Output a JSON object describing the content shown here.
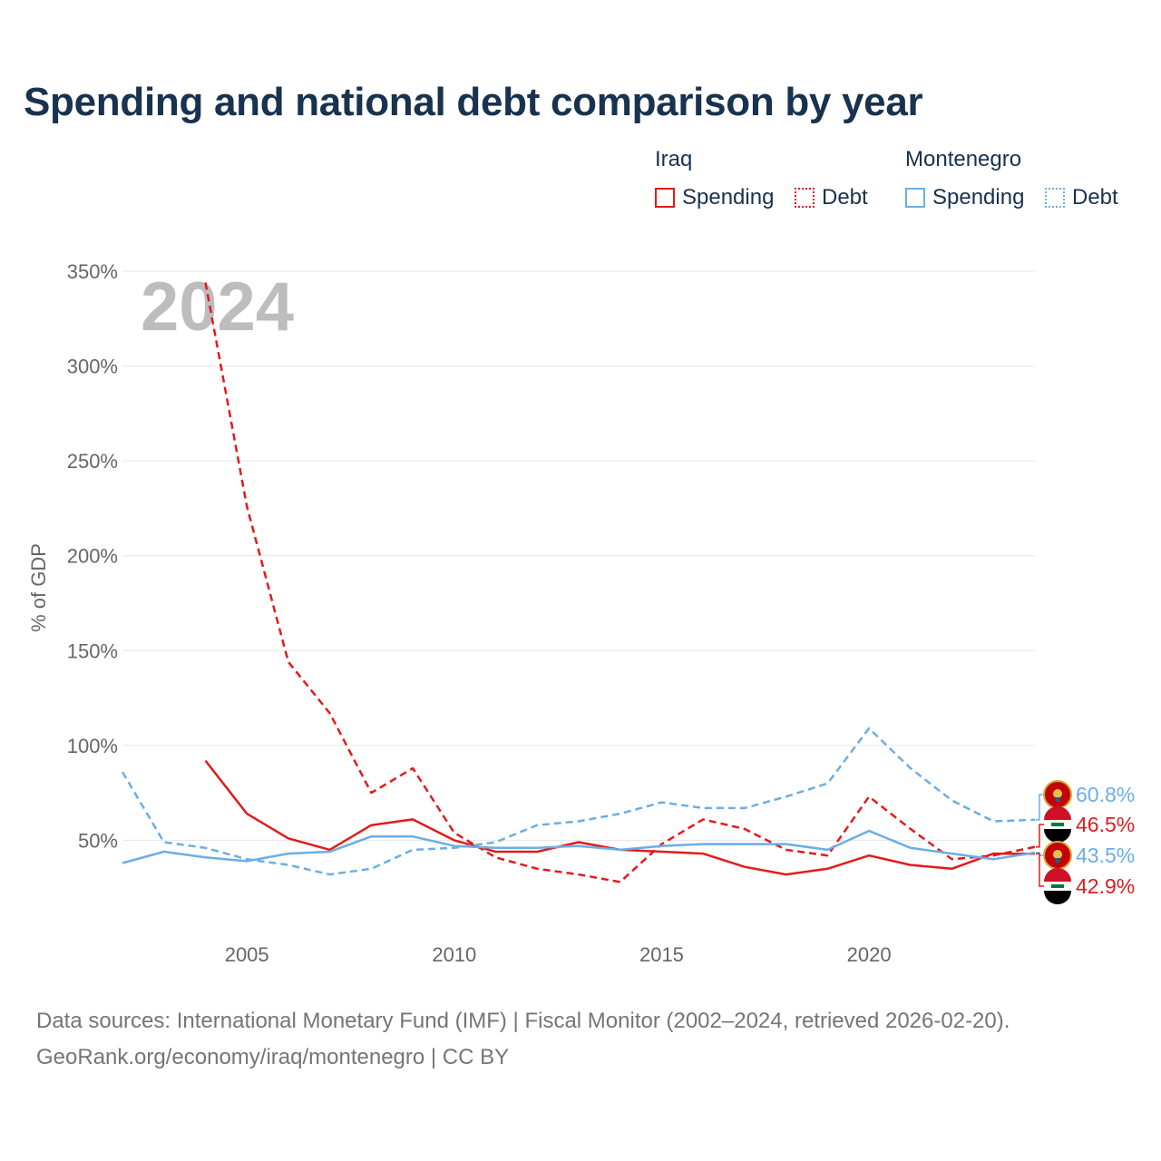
{
  "title": "Spending and national debt comparison by year",
  "legend": {
    "iraq": {
      "country": "Iraq",
      "spending": "Spending",
      "debt": "Debt",
      "color": "#e31a1c"
    },
    "montenegro": {
      "country": "Montenegro",
      "spending": "Spending",
      "debt": "Debt",
      "color": "#6aaee6"
    }
  },
  "year_label": "2024",
  "footer": {
    "line1": "Data sources: International Monetary Fund (IMF) | Fiscal Monitor (2002–2024, retrieved 2026-02-20).",
    "line2": "GeoRank.org/economy/iraq/montenegro | CC BY"
  },
  "chart_data": {
    "type": "line",
    "ylabel": "% of GDP",
    "xlim": [
      2002,
      2024
    ],
    "ylim": [
      0,
      350
    ],
    "x_ticks": [
      2005,
      2010,
      2015,
      2020
    ],
    "x_tick_labels": [
      "2005",
      "2010",
      "2015",
      "2020"
    ],
    "y_ticks": [
      50,
      100,
      150,
      200,
      250,
      300,
      350
    ],
    "y_tick_labels": [
      "50%",
      "100%",
      "150%",
      "200%",
      "250%",
      "300%",
      "350%"
    ],
    "series": [
      {
        "name": "Iraq Debt",
        "country": "Iraq",
        "kind": "debt",
        "color": "#e31a1c",
        "dash": "dashed",
        "x": [
          2004,
          2005,
          2006,
          2007,
          2008,
          2009,
          2010,
          2011,
          2012,
          2013,
          2014,
          2015,
          2016,
          2017,
          2018,
          2019,
          2020,
          2021,
          2022,
          2023,
          2024
        ],
        "values": [
          344,
          226,
          144,
          117,
          75,
          88,
          54,
          41,
          35,
          32,
          28,
          48,
          61,
          56,
          45,
          42,
          73,
          56,
          40,
          42,
          46.5
        ]
      },
      {
        "name": "Iraq Spending",
        "country": "Iraq",
        "kind": "spending",
        "color": "#e31a1c",
        "dash": "solid",
        "x": [
          2004,
          2005,
          2006,
          2007,
          2008,
          2009,
          2010,
          2011,
          2012,
          2013,
          2014,
          2015,
          2016,
          2017,
          2018,
          2019,
          2020,
          2021,
          2022,
          2023,
          2024
        ],
        "values": [
          92,
          64,
          51,
          45,
          58,
          61,
          50,
          44,
          44,
          49,
          45,
          44,
          43,
          36,
          32,
          35,
          42,
          37,
          35,
          43,
          42.9
        ]
      },
      {
        "name": "Montenegro Debt",
        "country": "Montenegro",
        "kind": "debt",
        "color": "#6aaee6",
        "dash": "dashed",
        "x": [
          2002,
          2003,
          2004,
          2005,
          2006,
          2007,
          2008,
          2009,
          2010,
          2011,
          2012,
          2013,
          2014,
          2015,
          2016,
          2017,
          2018,
          2019,
          2020,
          2021,
          2022,
          2023,
          2024
        ],
        "values": [
          86,
          49,
          46,
          40,
          37,
          32,
          35,
          45,
          46,
          49,
          58,
          60,
          64,
          70,
          67,
          67,
          73,
          80,
          109,
          88,
          71,
          60,
          60.8
        ]
      },
      {
        "name": "Montenegro Spending",
        "country": "Montenegro",
        "kind": "spending",
        "color": "#6aaee6",
        "dash": "solid",
        "x": [
          2002,
          2003,
          2004,
          2005,
          2006,
          2007,
          2008,
          2009,
          2010,
          2011,
          2012,
          2013,
          2014,
          2015,
          2016,
          2017,
          2018,
          2019,
          2020,
          2021,
          2022,
          2023,
          2024
        ],
        "values": [
          38,
          44,
          41,
          39,
          43,
          44,
          52,
          52,
          47,
          46,
          46,
          47,
          45,
          47,
          48,
          48,
          48,
          45,
          55,
          46,
          43,
          40,
          43.5
        ]
      }
    ],
    "end_labels": [
      {
        "series": "Montenegro Debt",
        "text": "60.8%",
        "color": "#6aaee6",
        "flag": "montenegro"
      },
      {
        "series": "Iraq Debt",
        "text": "46.5%",
        "color": "#e31a1c",
        "flag": "iraq"
      },
      {
        "series": "Montenegro Spending",
        "text": "43.5%",
        "color": "#6aaee6",
        "flag": "montenegro"
      },
      {
        "series": "Iraq Spending",
        "text": "42.9%",
        "color": "#e31a1c",
        "flag": "iraq"
      }
    ]
  }
}
